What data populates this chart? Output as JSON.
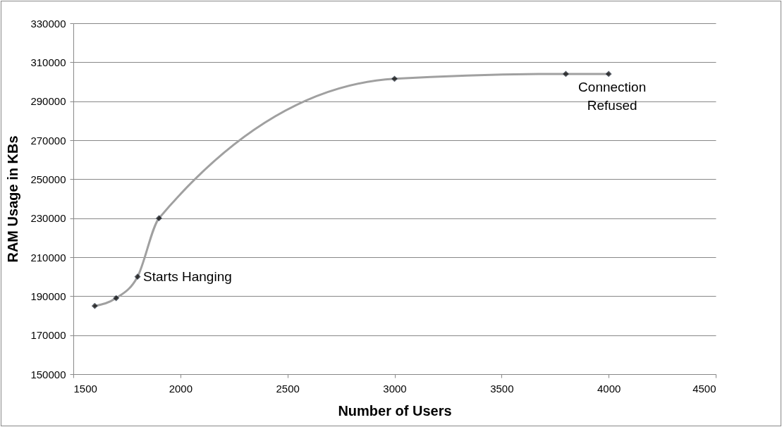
{
  "chart_data": {
    "type": "line",
    "xlabel": "Number of Users",
    "ylabel": "RAM Usage in KBs",
    "x": [
      1600,
      1700,
      1800,
      1900,
      3000,
      3800,
      4000
    ],
    "series": [
      {
        "color": "#a0a0a0",
        "values": [
          185000,
          189000,
          200000,
          230000,
          301500,
          304000,
          304000
        ]
      }
    ],
    "marker": "diamond",
    "grid": "y",
    "xlim": [
      1500,
      4500
    ],
    "xticks": [
      1500,
      2000,
      2500,
      3000,
      3500,
      4000,
      4500
    ],
    "ylim": [
      150000,
      330000
    ],
    "yticks": [
      150000,
      170000,
      190000,
      210000,
      230000,
      250000,
      270000,
      290000,
      310000,
      330000
    ],
    "annotations": [
      {
        "text": "Starts Hanging",
        "x": 1800,
        "y": 200000
      },
      {
        "text": "Connection Refused",
        "x": 4000,
        "y": 304000
      }
    ]
  }
}
